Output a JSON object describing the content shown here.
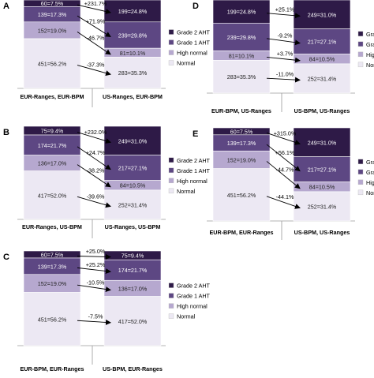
{
  "colors": {
    "grade2": "#2e1a47",
    "grade1": "#5d4783",
    "high_normal": "#b6a8cf",
    "normal": "#ece8f3",
    "arrow": "#000000",
    "segment_border": "#ffffff"
  },
  "legend": [
    "Grade 2 AHT",
    "Grade 1 AHT",
    "High normal",
    "Normal"
  ],
  "chart_data": [
    {
      "panel": "A",
      "type": "bar",
      "categories": [
        "EUR-Ranges, EUR-BPM",
        "US-Ranges, EUR-BPM"
      ],
      "series": [
        {
          "name": "Grade 2 AHT",
          "values": [
            60,
            199
          ],
          "labels": [
            "60=7.5%",
            "199=24.8%"
          ]
        },
        {
          "name": "Grade 1 AHT",
          "values": [
            139,
            239
          ],
          "labels": [
            "139=17.3%",
            "239=29.8%"
          ]
        },
        {
          "name": "High normal",
          "values": [
            152,
            81
          ],
          "labels": [
            "152=19.0%",
            "81=10.1%"
          ]
        },
        {
          "name": "Normal",
          "values": [
            451,
            283
          ],
          "labels": [
            "451=56.2%",
            "283=35.3%"
          ]
        }
      ],
      "changes": [
        "+231.7%",
        "+71.9%",
        "-46.7%",
        "-37.3%"
      ]
    },
    {
      "panel": "B",
      "type": "bar",
      "categories": [
        "EUR-Ranges, US-BPM",
        "US-Ranges, US-BPM"
      ],
      "series": [
        {
          "name": "Grade 2 AHT",
          "values": [
            75,
            249
          ],
          "labels": [
            "75=9.4%",
            "249=31.0%"
          ]
        },
        {
          "name": "Grade 1 AHT",
          "values": [
            174,
            217
          ],
          "labels": [
            "174=21.7%",
            "217=27.1%"
          ]
        },
        {
          "name": "High normal",
          "values": [
            136,
            84
          ],
          "labels": [
            "136=17.0%",
            "84=10.5%"
          ]
        },
        {
          "name": "Normal",
          "values": [
            417,
            252
          ],
          "labels": [
            "417=52.0%",
            "252=31.4%"
          ]
        }
      ],
      "changes": [
        "+232.0%",
        "+24.7%",
        "-38.2%",
        "-39.6%"
      ]
    },
    {
      "panel": "C",
      "type": "bar",
      "categories": [
        "EUR-BPM, EUR-Ranges",
        "US-BPM, EUR-Ranges"
      ],
      "series": [
        {
          "name": "Grade 2 AHT",
          "values": [
            60,
            75
          ],
          "labels": [
            "60=7.5%",
            "75=9.4%"
          ]
        },
        {
          "name": "Grade 1 AHT",
          "values": [
            139,
            174
          ],
          "labels": [
            "139=17.3%",
            "174=21.7%"
          ]
        },
        {
          "name": "High normal",
          "values": [
            152,
            136
          ],
          "labels": [
            "152=19.0%",
            "136=17.0%"
          ]
        },
        {
          "name": "Normal",
          "values": [
            451,
            417
          ],
          "labels": [
            "451=56.2%",
            "417=52.0%"
          ]
        }
      ],
      "changes": [
        "+25.0%",
        "+25.2%",
        "-10.5%",
        "-7.5%"
      ]
    },
    {
      "panel": "D",
      "type": "bar",
      "categories": [
        "EUR-BPM, US-Ranges",
        "US-BPM, US-Ranges"
      ],
      "series": [
        {
          "name": "Grade 2 AHT",
          "values": [
            199,
            249
          ],
          "labels": [
            "199=24.8%",
            "249=31.0%"
          ]
        },
        {
          "name": "Grade 1 AHT",
          "values": [
            239,
            217
          ],
          "labels": [
            "239=29.8%",
            "217=27.1%"
          ]
        },
        {
          "name": "High normal",
          "values": [
            81,
            84
          ],
          "labels": [
            "81=10.1%",
            "84=10.5%"
          ]
        },
        {
          "name": "Normal",
          "values": [
            283,
            252
          ],
          "labels": [
            "283=35.3%",
            "252=31.4%"
          ]
        }
      ],
      "changes": [
        "+25.1%",
        "-9.2%",
        "+3.7%",
        "-11.0%"
      ]
    },
    {
      "panel": "E",
      "type": "bar",
      "categories": [
        "EUR-BPM, EUR-Ranges",
        "US-BPM, US-Ranges"
      ],
      "series": [
        {
          "name": "Grade 2 AHT",
          "values": [
            60,
            249
          ],
          "labels": [
            "60=7.5%",
            "249=31.0%"
          ]
        },
        {
          "name": "Grade 1 AHT",
          "values": [
            139,
            217
          ],
          "labels": [
            "139=17.3%",
            "217=27.1%"
          ]
        },
        {
          "name": "High normal",
          "values": [
            152,
            84
          ],
          "labels": [
            "152=19.0%",
            "84=10.5%"
          ]
        },
        {
          "name": "Normal",
          "values": [
            451,
            252
          ],
          "labels": [
            "451=56.2%",
            "252=31.4%"
          ]
        }
      ],
      "changes": [
        "+315.0%",
        "+56.1%",
        "-44.7%",
        "-44.1%"
      ]
    }
  ]
}
